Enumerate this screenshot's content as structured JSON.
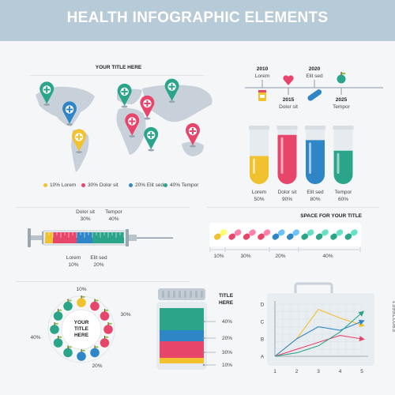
{
  "header": {
    "title": "HEALTH INFOGRAPHIC ELEMENTS"
  },
  "map": {
    "title": "YOUR TITLE HERE",
    "legend": [
      {
        "label": "10% Lorem",
        "color": "#f2c12e"
      },
      {
        "label": "30% Dolor sit",
        "color": "#e8456b"
      },
      {
        "label": "20% Elit sed",
        "color": "#2f86c7"
      },
      {
        "label": "40% Tempor",
        "color": "#2aa58a"
      }
    ],
    "pins": [
      {
        "color": "#2aa58a",
        "fx": 0.08,
        "fy": 0.1
      },
      {
        "color": "#2f86c7",
        "fx": 0.2,
        "fy": 0.3
      },
      {
        "color": "#2aa58a",
        "fx": 0.49,
        "fy": 0.12
      },
      {
        "color": "#e8456b",
        "fx": 0.61,
        "fy": 0.24
      },
      {
        "color": "#2aa58a",
        "fx": 0.74,
        "fy": 0.07
      },
      {
        "color": "#e8456b",
        "fx": 0.53,
        "fy": 0.42
      },
      {
        "color": "#2aa58a",
        "fx": 0.63,
        "fy": 0.56
      },
      {
        "color": "#f2c12e",
        "fx": 0.25,
        "fy": 0.58
      },
      {
        "color": "#e8456b",
        "fx": 0.85,
        "fy": 0.52
      }
    ]
  },
  "timeline": {
    "items": [
      {
        "year": "2010",
        "label": "Lorem",
        "pos": "top",
        "icon": "medicine-bottle-icon",
        "color": "#f2c12e"
      },
      {
        "year": "2015",
        "label": "Dolor sit",
        "pos": "bottom",
        "icon": "heart-icon",
        "color": "#e8456b"
      },
      {
        "year": "2020",
        "label": "Elit sed",
        "pos": "top",
        "icon": "bandage-icon",
        "color": "#2f86c7"
      },
      {
        "year": "2025",
        "label": "Tempor",
        "pos": "bottom",
        "icon": "apple-icon",
        "color": "#2aa58a"
      }
    ]
  },
  "tubes": {
    "items": [
      {
        "label": "Lorem",
        "value": 50,
        "value_label": "50%",
        "color": "#f2c12e"
      },
      {
        "label": "Dolor sit",
        "value": 90,
        "value_label": "90%",
        "color": "#e8456b"
      },
      {
        "label": "Elit sed",
        "value": 80,
        "value_label": "80%",
        "color": "#2f86c7"
      },
      {
        "label": "Tempor",
        "value": 60,
        "value_label": "60%",
        "color": "#2aa58a"
      }
    ]
  },
  "syringe": {
    "labels": [
      {
        "name": "Dolor sit",
        "value": "30%"
      },
      {
        "name": "Tempor",
        "value": "40%"
      },
      {
        "name": "Lorem",
        "value": "10%"
      },
      {
        "name": "Elit sed",
        "value": "20%"
      }
    ],
    "segments": [
      {
        "value": 10,
        "color": "#f2c12e"
      },
      {
        "value": 30,
        "color": "#e8456b"
      },
      {
        "value": 20,
        "color": "#2f86c7"
      },
      {
        "value": 40,
        "color": "#2aa58a"
      }
    ]
  },
  "pills": {
    "title": "SPACE FOR YOUR TITLE",
    "labels": [
      "10%",
      "30%",
      "20%",
      "40%"
    ],
    "segments": [
      {
        "value": 10,
        "color": "#f2c12e"
      },
      {
        "value": 30,
        "color": "#e8456b"
      },
      {
        "value": 20,
        "color": "#2f86c7"
      },
      {
        "value": 40,
        "color": "#2aa58a"
      }
    ]
  },
  "apples": {
    "title_lines": [
      "YOUR",
      "TITLE",
      "HERE"
    ],
    "labels": [
      "10%",
      "30%",
      "20%",
      "40%"
    ]
  },
  "bottle": {
    "title_lines": [
      "TITLE",
      "HERE"
    ],
    "labels": [
      "40%",
      "20%",
      "30%",
      "10%"
    ]
  },
  "chart_data": {
    "type": "line",
    "x": [
      1,
      2,
      3,
      4,
      5
    ],
    "y_categories": [
      "A",
      "B",
      "C",
      "D"
    ],
    "series": [
      {
        "color": "#f2c12e",
        "values": [
          1.0,
          2.0,
          3.7,
          3.2,
          2.8
        ]
      },
      {
        "color": "#2f86c7",
        "values": [
          1.0,
          2.0,
          2.7,
          2.5,
          3.0
        ]
      },
      {
        "color": "#e8456b",
        "values": [
          1.0,
          1.4,
          1.8,
          2.2,
          2.0
        ]
      },
      {
        "color": "#2aa58a",
        "values": [
          1.0,
          1.2,
          1.6,
          2.4,
          3.5
        ]
      }
    ],
    "xlim": [
      1,
      5
    ],
    "ylim": [
      1,
      4
    ]
  },
  "watermark": {
    "stock_id": "580276651"
  }
}
